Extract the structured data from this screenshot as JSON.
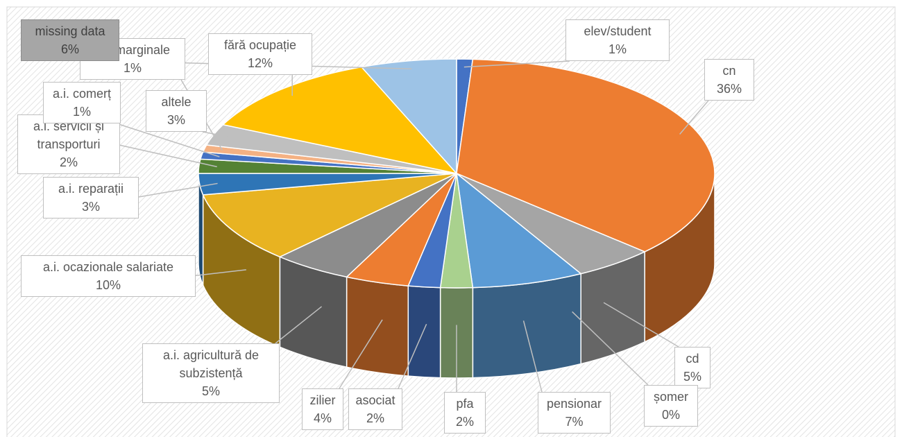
{
  "chart_data": {
    "type": "pie3d",
    "categories": [
      "elev/student",
      "cn",
      "cd",
      "șomer",
      "pensionar",
      "pfa",
      "asociat",
      "zilier",
      "a.i. agricultură de subzistență",
      "a.i. ocazionale salariate",
      "a.i. reparații",
      "a.i. servicii și transporturi",
      "a.i. comerț",
      "a.i. marginale",
      "altele",
      "fără ocupație",
      "missing data"
    ],
    "values": [
      1,
      36,
      5,
      0,
      7,
      2,
      2,
      4,
      5,
      10,
      3,
      2,
      1,
      1,
      3,
      12,
      6
    ],
    "value_labels": [
      "1%",
      "36%",
      "5%",
      "0%",
      "7%",
      "2%",
      "2%",
      "4%",
      "5%",
      "10%",
      "3%",
      "2%",
      "1%",
      "1%",
      "3%",
      "12%",
      "6%"
    ],
    "colors": [
      "#4472c4",
      "#ed7d31",
      "#a5a5a5",
      "#ffc000",
      "#5b9bd5",
      "#a9d18e",
      "#4472c4",
      "#ed7d31",
      "#8c8c8c",
      "#e8b321",
      "#2e75b6",
      "#548235",
      "#4472c4",
      "#f4b183",
      "#bfbfbf",
      "#ffc000",
      "#9dc3e6"
    ]
  }
}
